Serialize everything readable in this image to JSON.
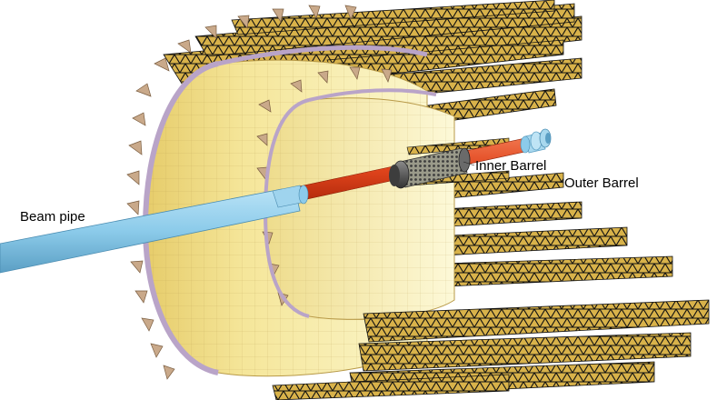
{
  "labels": {
    "beam_pipe": "Beam pipe",
    "inner_barrel": "Inner Barrel",
    "outer_barrel": "Outer Barrel"
  },
  "colors": {
    "beam_pipe": "#8ccbea",
    "beam_pipe_shadow": "#5b9fc4",
    "inner_pipe": "#e0441c",
    "barrel_inner_surface": "#f2e08e",
    "barrel_inner_surface_light": "#faf3bf",
    "barrel_inner_surface_dark": "#c9a94e",
    "stave_frame": "#1a1a1a",
    "stave_plate": "#d8b24a",
    "stave_end_fitting": "#c9a98a",
    "end_ring": "#b9a4c8",
    "inner_barrel_body": "#5d5d5d"
  },
  "icons": {
    "detector": "detector-illustration"
  }
}
